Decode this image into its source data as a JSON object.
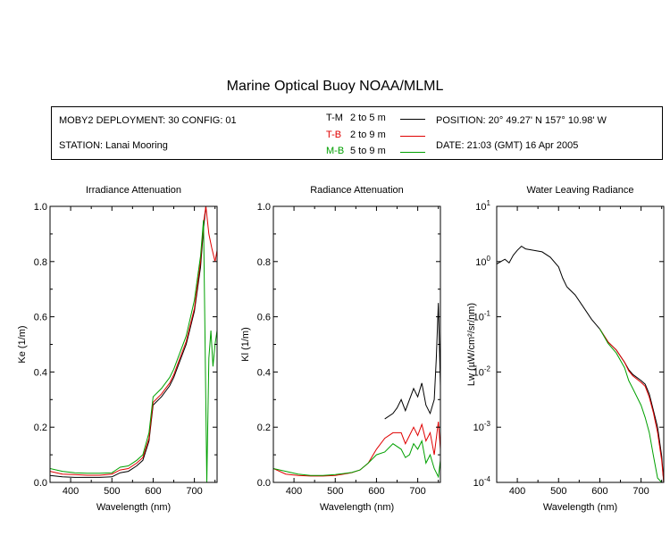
{
  "page": {
    "title": "Marine Optical Buoy NOAA/MLML"
  },
  "info": {
    "deployment": "MOBY2 DEPLOYMENT: 30 CONFIG: 01",
    "station": "STATION: Lanai Mooring",
    "position": "POSITION: 20° 49.27' N   157° 10.98' W",
    "date": "DATE: 21:03 (GMT) 16 Apr 2005",
    "legend": [
      {
        "name": "T-M",
        "range": "2 to 5  m",
        "color": "#000000"
      },
      {
        "name": "T-B",
        "range": "2 to 9  m",
        "color": "#e00000"
      },
      {
        "name": "M-B",
        "range": "5 to 9  m",
        "color": "#00a000"
      }
    ]
  },
  "chart_data": [
    {
      "type": "line",
      "title": "Irradiance Attenuation",
      "xlabel": "Wavelength (nm)",
      "ylabel": "Ke  (1/m)",
      "xlim": [
        350,
        755
      ],
      "ylim": [
        0.0,
        1.0
      ],
      "xticks": [
        "400",
        "500",
        "600",
        "700"
      ],
      "xtick_values": [
        400,
        500,
        600,
        700
      ],
      "yticks": [
        "0.0",
        "0.2",
        "0.4",
        "0.6",
        "0.8",
        "1.0"
      ],
      "ytick_values": [
        0.0,
        0.2,
        0.4,
        0.6,
        0.8,
        1.0
      ],
      "scale": "linear",
      "series": [
        {
          "name": "T-M",
          "color": "#000000",
          "x": [
            350,
            380,
            410,
            440,
            470,
            500,
            520,
            540,
            560,
            575,
            590,
            600,
            620,
            640,
            650,
            660,
            680,
            700,
            715,
            722,
            728
          ],
          "y": [
            0.025,
            0.02,
            0.018,
            0.018,
            0.018,
            0.02,
            0.035,
            0.04,
            0.06,
            0.08,
            0.15,
            0.28,
            0.31,
            0.35,
            0.38,
            0.42,
            0.5,
            0.62,
            0.78,
            0.92,
            1.0
          ]
        },
        {
          "name": "T-B",
          "color": "#e00000",
          "x": [
            350,
            380,
            410,
            440,
            470,
            500,
            520,
            540,
            560,
            575,
            590,
            600,
            620,
            640,
            650,
            660,
            680,
            700,
            715,
            722,
            728,
            735,
            742,
            750,
            755
          ],
          "y": [
            0.04,
            0.03,
            0.028,
            0.026,
            0.026,
            0.03,
            0.045,
            0.05,
            0.07,
            0.09,
            0.16,
            0.29,
            0.32,
            0.36,
            0.39,
            0.43,
            0.51,
            0.63,
            0.8,
            0.94,
            1.0,
            0.9,
            0.85,
            0.8,
            0.84
          ]
        },
        {
          "name": "M-B",
          "color": "#00a000",
          "x": [
            350,
            380,
            410,
            440,
            470,
            500,
            520,
            540,
            560,
            575,
            590,
            600,
            620,
            640,
            650,
            660,
            680,
            700,
            715,
            722,
            726,
            730,
            735,
            740,
            745,
            750,
            755
          ],
          "y": [
            0.05,
            0.04,
            0.035,
            0.033,
            0.033,
            0.035,
            0.055,
            0.06,
            0.08,
            0.1,
            0.18,
            0.31,
            0.34,
            0.38,
            0.41,
            0.45,
            0.53,
            0.66,
            0.82,
            0.95,
            0.5,
            0.0,
            0.45,
            0.55,
            0.42,
            0.5,
            0.55
          ]
        }
      ]
    },
    {
      "type": "line",
      "title": "Radiance Attenuation",
      "xlabel": "Wavelength (nm)",
      "ylabel": "Kl  (1/m)",
      "xlim": [
        350,
        755
      ],
      "ylim": [
        0.0,
        1.0
      ],
      "xticks": [
        "400",
        "500",
        "600",
        "700"
      ],
      "xtick_values": [
        400,
        500,
        600,
        700
      ],
      "yticks": [
        "0.0",
        "0.2",
        "0.4",
        "0.6",
        "0.8",
        "1.0"
      ],
      "ytick_values": [
        0.0,
        0.2,
        0.4,
        0.6,
        0.8,
        1.0
      ],
      "scale": "linear",
      "series": [
        {
          "name": "T-M",
          "color": "#000000",
          "x": [
            620,
            640,
            650,
            660,
            670,
            680,
            690,
            700,
            710,
            720,
            730,
            740,
            745,
            750,
            755
          ],
          "y": [
            0.23,
            0.25,
            0.27,
            0.3,
            0.26,
            0.3,
            0.34,
            0.31,
            0.36,
            0.28,
            0.25,
            0.3,
            0.45,
            0.65,
            0.35
          ]
        },
        {
          "name": "T-B",
          "color": "#e00000",
          "x": [
            350,
            380,
            410,
            440,
            470,
            500,
            520,
            540,
            560,
            580,
            600,
            620,
            640,
            660,
            670,
            680,
            690,
            700,
            710,
            720,
            730,
            740,
            750,
            755
          ],
          "y": [
            0.05,
            0.03,
            0.025,
            0.023,
            0.023,
            0.025,
            0.03,
            0.035,
            0.045,
            0.07,
            0.12,
            0.16,
            0.18,
            0.18,
            0.14,
            0.17,
            0.2,
            0.17,
            0.21,
            0.15,
            0.18,
            0.1,
            0.22,
            0.12
          ]
        },
        {
          "name": "M-B",
          "color": "#00a000",
          "x": [
            350,
            380,
            410,
            440,
            470,
            500,
            520,
            540,
            560,
            580,
            600,
            620,
            640,
            660,
            670,
            680,
            690,
            700,
            710,
            720,
            730,
            740,
            750,
            755
          ],
          "y": [
            0.05,
            0.04,
            0.03,
            0.025,
            0.025,
            0.028,
            0.032,
            0.036,
            0.045,
            0.07,
            0.1,
            0.11,
            0.14,
            0.12,
            0.09,
            0.1,
            0.14,
            0.12,
            0.15,
            0.07,
            0.1,
            0.05,
            0.02,
            0.08
          ]
        }
      ]
    },
    {
      "type": "line",
      "title": "Water Leaving Radiance",
      "xlabel": "Wavelength (nm)",
      "ylabel": "Lw  (µW/cm²/sr/nm)",
      "xlim": [
        350,
        755
      ],
      "ylim": [
        0.0001,
        10
      ],
      "xticks": [
        "400",
        "500",
        "600",
        "700"
      ],
      "xtick_values": [
        400,
        500,
        600,
        700
      ],
      "yticks_base": "10",
      "yticks_exp": [
        "1",
        "0",
        "-1",
        "-2",
        "-3",
        "-4"
      ],
      "ytick_values": [
        10,
        1,
        0.1,
        0.01,
        0.001,
        0.0001
      ],
      "scale": "log",
      "series": [
        {
          "name": "T-M",
          "color": "#000000",
          "x": [
            350,
            360,
            370,
            380,
            390,
            400,
            410,
            420,
            440,
            460,
            480,
            500,
            510,
            520,
            540,
            560,
            580,
            600,
            620,
            640,
            660,
            670,
            680,
            700,
            710,
            720,
            730,
            740,
            750,
            755
          ],
          "y": [
            0.9,
            1.0,
            1.1,
            0.95,
            1.3,
            1.6,
            1.9,
            1.7,
            1.6,
            1.5,
            1.2,
            0.8,
            0.5,
            0.35,
            0.25,
            0.15,
            0.09,
            0.06,
            0.035,
            0.025,
            0.015,
            0.011,
            0.009,
            0.007,
            0.006,
            0.004,
            0.002,
            0.001,
            0.0003,
            0.0001
          ]
        },
        {
          "name": "T-B",
          "color": "#e00000",
          "x": [
            600,
            620,
            640,
            660,
            670,
            680,
            700,
            710,
            720,
            730,
            740,
            750,
            755
          ],
          "y": [
            0.06,
            0.035,
            0.025,
            0.015,
            0.0105,
            0.0085,
            0.0065,
            0.0055,
            0.0035,
            0.0018,
            0.0008,
            0.00025,
            0.0001
          ]
        },
        {
          "name": "M-B",
          "color": "#00a000",
          "x": [
            600,
            620,
            640,
            660,
            670,
            680,
            700,
            710,
            720,
            730,
            740,
            750,
            755
          ],
          "y": [
            0.06,
            0.033,
            0.022,
            0.012,
            0.007,
            0.005,
            0.0025,
            0.0015,
            0.0008,
            0.0003,
            0.00012,
            0.0001,
            0.0001
          ]
        }
      ]
    }
  ]
}
